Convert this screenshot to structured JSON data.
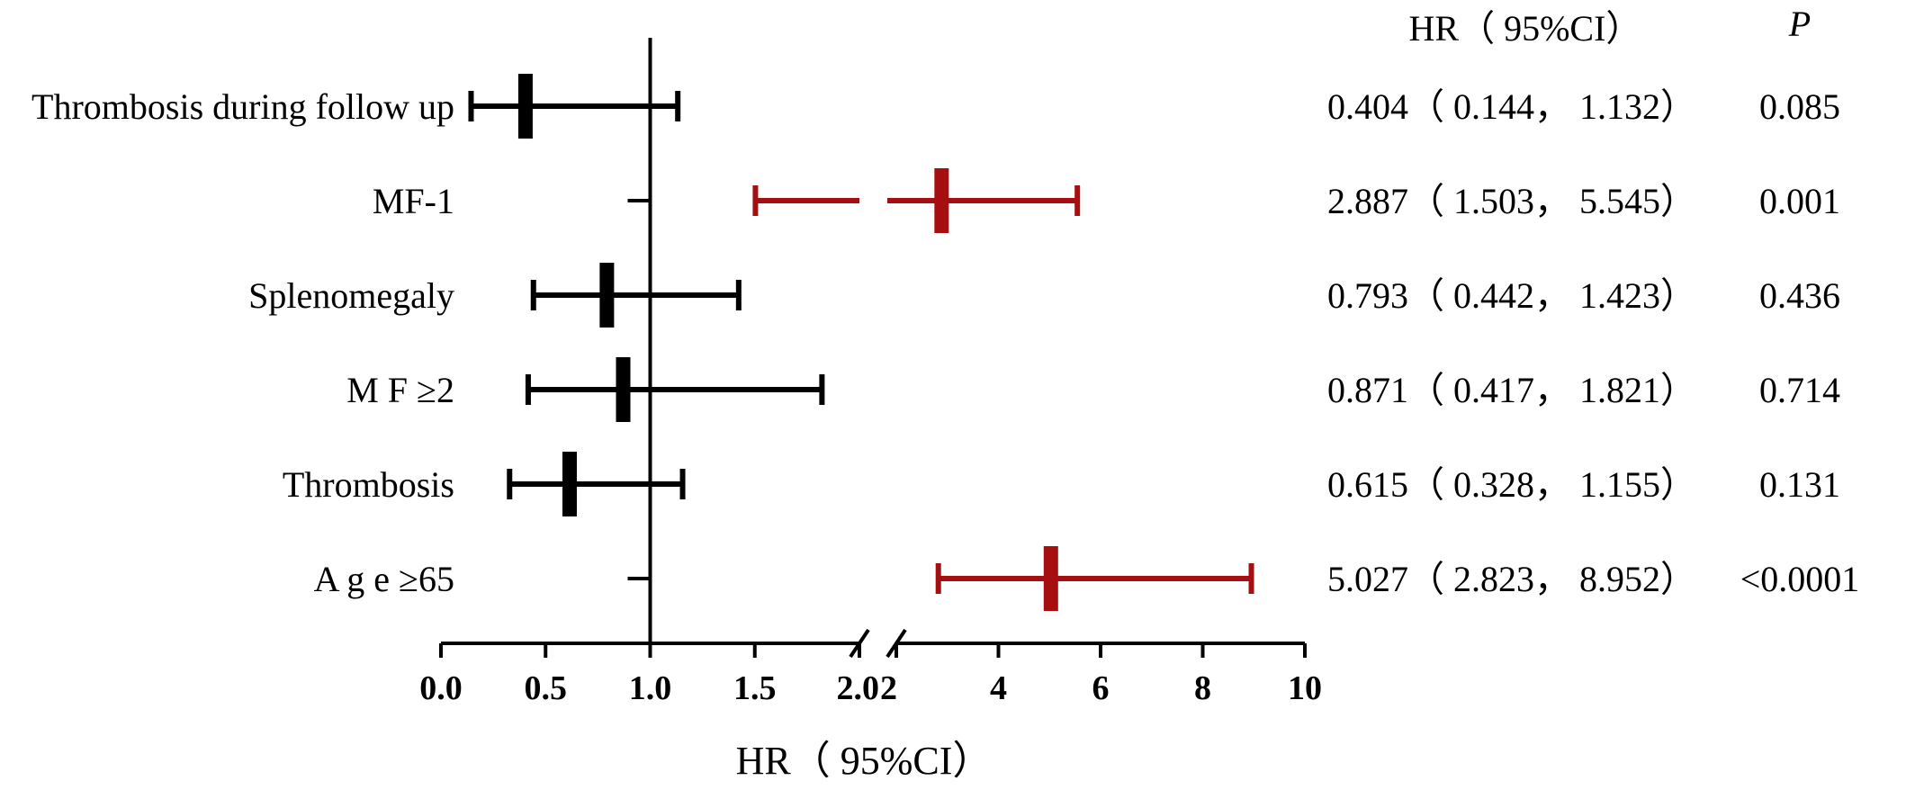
{
  "chart_data": {
    "type": "forest",
    "column_headers": {
      "estimate": "HR（ 95%CI）",
      "p": "P"
    },
    "xlabel": "HR（ 95%CI）",
    "reference_line": 1.0,
    "axis": {
      "broken": true,
      "segments": [
        {
          "range": [
            0.0,
            2.0
          ],
          "ticks": [
            "0.0",
            "0.5",
            "1.0",
            "1.5",
            "2.0"
          ]
        },
        {
          "range": [
            2,
            10
          ],
          "ticks": [
            "2",
            "4",
            "6",
            "8",
            "10"
          ]
        }
      ]
    },
    "colors": {
      "nonsignificant": "#000000",
      "significant": "#a50f0f"
    },
    "rows": [
      {
        "label": "Thrombosis during follow up",
        "hr": 0.404,
        "lower": 0.144,
        "upper": 1.132,
        "hr_text": "0.404（ 0.144， 1.132）",
        "p": "0.085",
        "significant": false
      },
      {
        "label": "MF-1",
        "hr": 2.887,
        "lower": 1.503,
        "upper": 5.545,
        "hr_text": "2.887（ 1.503， 5.545）",
        "p": "0.001",
        "significant": true
      },
      {
        "label": "Splenomegaly",
        "hr": 0.793,
        "lower": 0.442,
        "upper": 1.423,
        "hr_text": "0.793（ 0.442， 1.423）",
        "p": "0.436",
        "significant": false
      },
      {
        "label": "M F ≥2",
        "hr": 0.871,
        "lower": 0.417,
        "upper": 1.821,
        "hr_text": "0.871（ 0.417， 1.821）",
        "p": "0.714",
        "significant": false
      },
      {
        "label": "Thrombosis",
        "hr": 0.615,
        "lower": 0.328,
        "upper": 1.155,
        "hr_text": "0.615（ 0.328， 1.155）",
        "p": "0.131",
        "significant": false
      },
      {
        "label": "A g e ≥65",
        "hr": 5.027,
        "lower": 2.823,
        "upper": 8.952,
        "hr_text": "5.027（ 2.823， 8.952）",
        "p": "<0.0001",
        "significant": true
      }
    ]
  }
}
